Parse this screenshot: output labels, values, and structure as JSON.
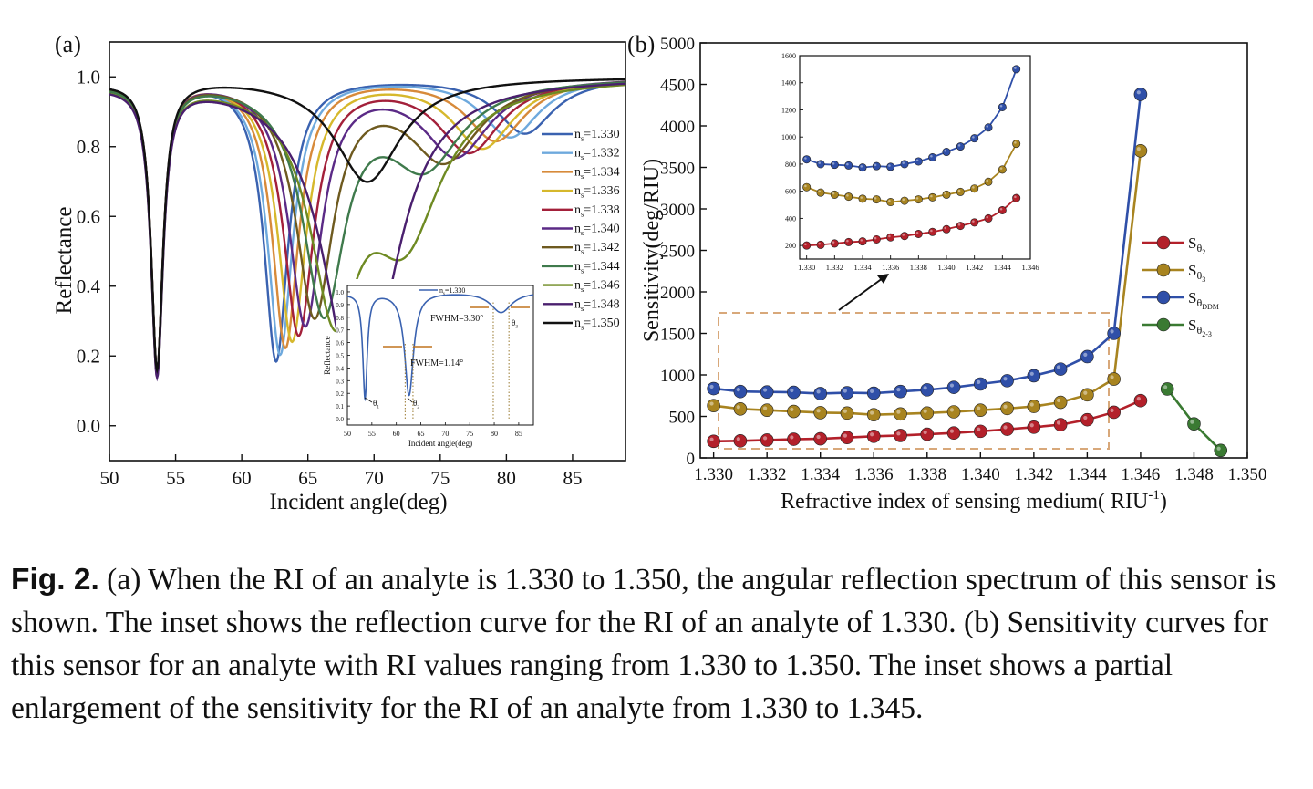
{
  "panels": {
    "a_label": "(a)",
    "b_label": "(b)"
  },
  "chart_data": [
    {
      "type": "line",
      "panel": "(a)",
      "xlabel": "Incident angle(deg)",
      "ylabel": "Reflectance",
      "xlim": [
        50,
        89
      ],
      "ylim": [
        -0.1,
        1.1
      ],
      "xticks": [
        "50",
        "55",
        "60",
        "65",
        "70",
        "75",
        "80",
        "85"
      ],
      "yticks": [
        "0.0",
        "0.2",
        "0.4",
        "0.6",
        "0.8",
        "1.0"
      ],
      "legend_placement": "right",
      "series": [
        {
          "name": "n_s=1.330",
          "label_main": "n",
          "label_sub": "s",
          "label_rest": "=1.330",
          "color": "#3a62b0",
          "dips": [
            {
              "x": 53.6,
              "depth": 0.17,
              "w": 0.55
            },
            {
              "x": 62.6,
              "depth": 0.19,
              "w": 1.1
            },
            {
              "x": 81.4,
              "depth": 0.84,
              "w": 2.6
            }
          ]
        },
        {
          "name": "n_s=1.332",
          "label_main": "n",
          "label_sub": "s",
          "label_rest": "=1.332",
          "color": "#6ea9dd",
          "dips": [
            {
              "x": 53.6,
              "depth": 0.17,
              "w": 0.55
            },
            {
              "x": 62.9,
              "depth": 0.21,
              "w": 1.15
            },
            {
              "x": 80.3,
              "depth": 0.83,
              "w": 2.6
            }
          ]
        },
        {
          "name": "n_s=1.334",
          "label_main": "n",
          "label_sub": "s",
          "label_rest": "=1.334",
          "color": "#d78a3a",
          "dips": [
            {
              "x": 53.6,
              "depth": 0.17,
              "w": 0.55
            },
            {
              "x": 63.3,
              "depth": 0.23,
              "w": 1.2
            },
            {
              "x": 79.2,
              "depth": 0.82,
              "w": 2.7
            }
          ]
        },
        {
          "name": "n_s=1.336",
          "label_main": "n",
          "label_sub": "s",
          "label_rest": "=1.336",
          "color": "#d6b82c",
          "dips": [
            {
              "x": 53.6,
              "depth": 0.17,
              "w": 0.55
            },
            {
              "x": 63.8,
              "depth": 0.25,
              "w": 1.3
            },
            {
              "x": 78.2,
              "depth": 0.8,
              "w": 2.8
            }
          ]
        },
        {
          "name": "n_s=1.338",
          "label_main": "n",
          "label_sub": "s",
          "label_rest": "=1.338",
          "color": "#a3203a",
          "dips": [
            {
              "x": 53.6,
              "depth": 0.17,
              "w": 0.55
            },
            {
              "x": 64.3,
              "depth": 0.27,
              "w": 1.4
            },
            {
              "x": 77.2,
              "depth": 0.79,
              "w": 2.9
            }
          ]
        },
        {
          "name": "n_s=1.340",
          "label_main": "n",
          "label_sub": "s",
          "label_rest": "=1.340",
          "color": "#5b2a86",
          "dips": [
            {
              "x": 53.6,
              "depth": 0.17,
              "w": 0.55
            },
            {
              "x": 64.8,
              "depth": 0.3,
              "w": 1.5
            },
            {
              "x": 76.2,
              "depth": 0.78,
              "w": 3.0
            }
          ]
        },
        {
          "name": "n_s=1.342",
          "label_main": "n",
          "label_sub": "s",
          "label_rest": "=1.342",
          "color": "#6e5a1f",
          "dips": [
            {
              "x": 53.6,
              "depth": 0.17,
              "w": 0.55
            },
            {
              "x": 65.5,
              "depth": 0.33,
              "w": 1.7
            },
            {
              "x": 75.3,
              "depth": 0.77,
              "w": 3.2
            }
          ]
        },
        {
          "name": "n_s=1.344",
          "label_main": "n",
          "label_sub": "s",
          "label_rest": "=1.344",
          "color": "#3f7a4c",
          "dips": [
            {
              "x": 53.6,
              "depth": 0.17,
              "w": 0.55
            },
            {
              "x": 66.2,
              "depth": 0.35,
              "w": 1.9
            },
            {
              "x": 73.8,
              "depth": 0.76,
              "w": 3.4
            }
          ]
        },
        {
          "name": "n_s=1.346",
          "label_main": "n",
          "label_sub": "s",
          "label_rest": "=1.346",
          "color": "#6e8a22",
          "dips": [
            {
              "x": 53.6,
              "depth": 0.17,
              "w": 0.55
            },
            {
              "x": 67.0,
              "depth": 0.4,
              "w": 2.2
            },
            {
              "x": 72.3,
              "depth": 0.57,
              "w": 3.4
            }
          ]
        },
        {
          "name": "n_s=1.348",
          "label_main": "n",
          "label_sub": "s",
          "label_rest": "=1.348",
          "color": "#4a1f6e",
          "dips": [
            {
              "x": 53.6,
              "depth": 0.17,
              "w": 0.55
            },
            {
              "x": 68.2,
              "depth": 0.48,
              "w": 2.6
            },
            {
              "x": 69.8,
              "depth": 0.52,
              "w": 3.0
            }
          ]
        },
        {
          "name": "n_s=1.350",
          "label_main": "n",
          "label_sub": "s",
          "label_rest": "=1.350",
          "color": "#111111",
          "dips": [
            {
              "x": 53.6,
              "depth": 0.17,
              "w": 0.55
            },
            {
              "x": 69.5,
              "depth": 0.7,
              "w": 3.0
            }
          ]
        }
      ],
      "inset": {
        "legend": "n_s=1.330",
        "legend_main": "n",
        "legend_sub": "s",
        "legend_rest": "=1.330",
        "xlabel": "Incident angle(deg)",
        "ylabel": "Reflectance",
        "xlim": [
          50,
          88
        ],
        "ylim": [
          -0.05,
          1.05
        ],
        "xticks": [
          "50",
          "55",
          "60",
          "65",
          "70",
          "75",
          "80",
          "85"
        ],
        "yticks": [
          "0.0",
          "0.1",
          "0.2",
          "0.3",
          "0.4",
          "0.5",
          "0.6",
          "0.7",
          "0.8",
          "0.9",
          "1.0"
        ],
        "annotations": {
          "fwhm1": "FWHM=1.14°",
          "fwhm2": "FWHM=3.30°",
          "theta1": "θ",
          "theta1_sub": "1",
          "theta2": "θ",
          "theta2_sub": "2",
          "theta3": "θ",
          "theta3_sub": "3"
        },
        "series": {
          "dips": [
            {
              "x": 53.6,
              "depth": 0.17,
              "w": 0.55
            },
            {
              "x": 62.6,
              "depth": 0.19,
              "w": 1.1
            },
            {
              "x": 81.4,
              "depth": 0.84,
              "w": 2.6
            }
          ],
          "color": "#3a62b0"
        }
      }
    },
    {
      "type": "line",
      "panel": "(b)",
      "xlabel": "Refractive index of sensing medium( RIU",
      "xlabel_sup": "-1",
      "xlabel_end": ")",
      "ylabel": "Sensitivity(deg/RIU)",
      "xlim": [
        1.3295,
        1.35
      ],
      "ylim": [
        0,
        5000
      ],
      "xticks": [
        "1.330",
        "1.332",
        "1.334",
        "1.336",
        "1.338",
        "1.340",
        "1.342",
        "1.344",
        "1.346",
        "1.348",
        "1.350"
      ],
      "yticks": [
        "0",
        "500",
        "1000",
        "1500",
        "2000",
        "2500",
        "3000",
        "3500",
        "4000",
        "4500",
        "5000"
      ],
      "legend_placement": "right",
      "series": [
        {
          "name": "Sθ2",
          "label_main": "S",
          "label_sub": "θ",
          "label_subsub": "2",
          "color": "#b3202a",
          "x": [
            1.33,
            1.331,
            1.332,
            1.333,
            1.334,
            1.335,
            1.336,
            1.337,
            1.338,
            1.339,
            1.34,
            1.341,
            1.342,
            1.343,
            1.344,
            1.345,
            1.346
          ],
          "y": [
            200,
            205,
            215,
            225,
            230,
            245,
            260,
            270,
            285,
            300,
            320,
            345,
            370,
            400,
            460,
            550,
            690
          ]
        },
        {
          "name": "Sθ3",
          "label_main": "S",
          "label_sub": "θ",
          "label_subsub": "3",
          "color": "#a88420",
          "x": [
            1.33,
            1.331,
            1.332,
            1.333,
            1.334,
            1.335,
            1.336,
            1.337,
            1.338,
            1.339,
            1.34,
            1.341,
            1.342,
            1.343,
            1.344,
            1.345,
            1.346
          ],
          "y": [
            630,
            590,
            575,
            560,
            545,
            540,
            520,
            530,
            540,
            555,
            575,
            595,
            620,
            670,
            760,
            950,
            3700
          ]
        },
        {
          "name": "SθDDM",
          "label_main": "S",
          "label_sub": "θ",
          "label_subsub": "DDM",
          "color": "#2f4fa8",
          "x": [
            1.33,
            1.331,
            1.332,
            1.333,
            1.334,
            1.335,
            1.336,
            1.337,
            1.338,
            1.339,
            1.34,
            1.341,
            1.342,
            1.343,
            1.344,
            1.345,
            1.346
          ],
          "y": [
            835,
            800,
            795,
            790,
            775,
            785,
            780,
            800,
            820,
            850,
            890,
            930,
            990,
            1070,
            1220,
            1500,
            4380
          ]
        },
        {
          "name": "Sθ2-3",
          "label_main": "S",
          "label_sub": "θ",
          "label_subsub": "2-3",
          "color": "#3a7a32",
          "x": [
            1.347,
            1.348,
            1.349
          ],
          "y": [
            830,
            410,
            90
          ]
        }
      ],
      "inset": {
        "xlim": [
          1.3295,
          1.346
        ],
        "ylim": [
          100,
          1600
        ],
        "xticks": [
          "1.330",
          "1.332",
          "1.334",
          "1.336",
          "1.338",
          "1.340",
          "1.342",
          "1.344",
          "1.346"
        ],
        "yticks": [
          "200",
          "400",
          "600",
          "800",
          "1000",
          "1200",
          "1400",
          "1600"
        ],
        "series_range": [
          1.33,
          1.345
        ]
      }
    }
  ],
  "caption": {
    "label": "Fig. 2.",
    "text": " (a) When the RI of an analyte is 1.330 to 1.350, the angular reflection spectrum of this sensor is shown. The inset shows the reflection curve for the RI of an analyte of 1.330. (b) Sensitivity curves for this sensor for an analyte with RI values ranging from 1.330 to 1.350. The inset shows a partial enlargement of the sensitivity for the RI of an analyte from 1.330 to 1.345."
  }
}
